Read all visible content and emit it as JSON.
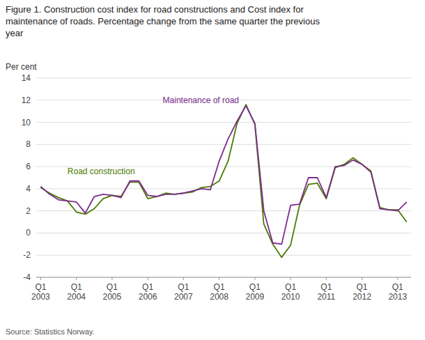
{
  "chart_data": {
    "type": "line",
    "title": "Figure 1. Construction cost index for road constructions and Cost index for\nmaintenance of roads. Percentage change from the same quarter the previous\nyear",
    "y_label": "Per cent",
    "source": "Source: Statistics Norway.",
    "categories": [
      "Q1\n2003",
      null,
      null,
      null,
      "Q1\n2004",
      null,
      null,
      null,
      "Q1\n2005",
      null,
      null,
      null,
      "Q1\n2006",
      null,
      null,
      null,
      "Q1\n2007",
      null,
      null,
      null,
      "Q1\n2008",
      null,
      null,
      null,
      "Q1\n2009",
      null,
      null,
      null,
      "Q1\n2010",
      null,
      null,
      null,
      "Q1\n2011",
      null,
      null,
      null,
      "Q1\n2012",
      null,
      null,
      null,
      "Q1\n2013",
      null
    ],
    "series": [
      {
        "name": "Road construction",
        "color": "#4a7a00",
        "values": [
          4.1,
          3.6,
          3.2,
          2.9,
          1.9,
          1.7,
          2.2,
          3.1,
          3.4,
          3.3,
          4.6,
          4.6,
          3.1,
          3.3,
          3.6,
          3.5,
          3.6,
          3.7,
          4.1,
          4.2,
          4.7,
          6.5,
          9.9,
          11.6,
          9.8,
          0.8,
          -1.0,
          -2.2,
          -1.1,
          2.5,
          4.4,
          4.5,
          3.1,
          5.9,
          6.2,
          6.8,
          6.2,
          5.6,
          2.3,
          2.1,
          2.1,
          1.0
        ]
      },
      {
        "name": "Maintenance of road",
        "color": "#7b2d8b",
        "values": [
          4.2,
          3.5,
          3.0,
          2.9,
          2.8,
          1.8,
          3.3,
          3.5,
          3.4,
          3.2,
          4.7,
          4.7,
          3.4,
          3.3,
          3.5,
          3.5,
          3.6,
          3.8,
          4.0,
          3.9,
          6.5,
          8.5,
          10.1,
          11.5,
          9.9,
          2.0,
          -0.9,
          -1.0,
          2.5,
          2.6,
          5.0,
          5.0,
          3.2,
          6.0,
          6.1,
          6.6,
          6.2,
          5.5,
          2.2,
          2.1,
          2.0,
          2.8
        ]
      }
    ],
    "ylim": [
      -4,
      14
    ],
    "yticks": [
      -4,
      -2,
      0,
      2,
      4,
      6,
      8,
      10,
      12,
      14
    ],
    "grid": true
  }
}
